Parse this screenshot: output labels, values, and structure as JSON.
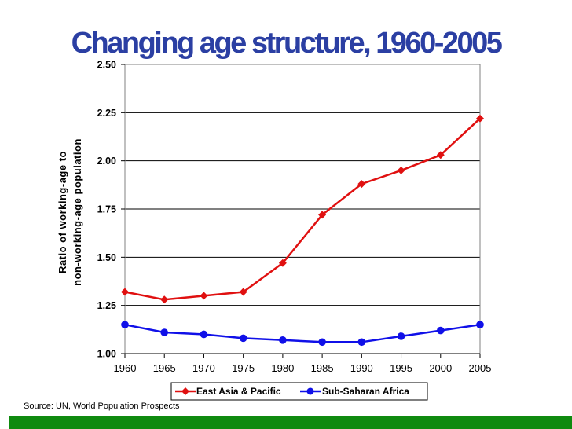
{
  "title": "Changing age structure, 1960-2005",
  "source": "Source: UN, World Population Prospects",
  "colors": {
    "title": "#2b3fa3",
    "east_asia": "#e01010",
    "sub_saharan": "#1010e8",
    "bottom_bar": "#0f8a0f"
  },
  "chart_data": {
    "type": "line",
    "title": "",
    "x": [
      1960,
      1965,
      1970,
      1975,
      1980,
      1985,
      1990,
      1995,
      2000,
      2005
    ],
    "x_tick_labels": [
      "1960",
      "1965",
      "1970",
      "1975",
      "1980",
      "1985",
      "1990",
      "1995",
      "2000",
      "2005"
    ],
    "y_tick_labels": [
      "1.00",
      "1.25",
      "1.50",
      "1.75",
      "2.00",
      "2.25",
      "2.50"
    ],
    "y_ticks": [
      1.0,
      1.25,
      1.5,
      1.75,
      2.0,
      2.25,
      2.5
    ],
    "ylim": [
      1.0,
      2.5
    ],
    "ylabel_line1": "Ratio of working-age to",
    "ylabel_line2": "non-working-age population",
    "xlabel": "",
    "grid": "horizontal",
    "legend_position": "bottom",
    "series": [
      {
        "name": "East Asia & Pacific",
        "color": "#e01010",
        "marker": "diamond",
        "values": [
          1.32,
          1.28,
          1.3,
          1.32,
          1.47,
          1.72,
          1.88,
          1.95,
          2.03,
          2.22
        ]
      },
      {
        "name": "Sub-Saharan Africa",
        "color": "#1010e8",
        "marker": "circle",
        "values": [
          1.15,
          1.11,
          1.1,
          1.08,
          1.07,
          1.06,
          1.06,
          1.09,
          1.12,
          1.15
        ]
      }
    ]
  }
}
